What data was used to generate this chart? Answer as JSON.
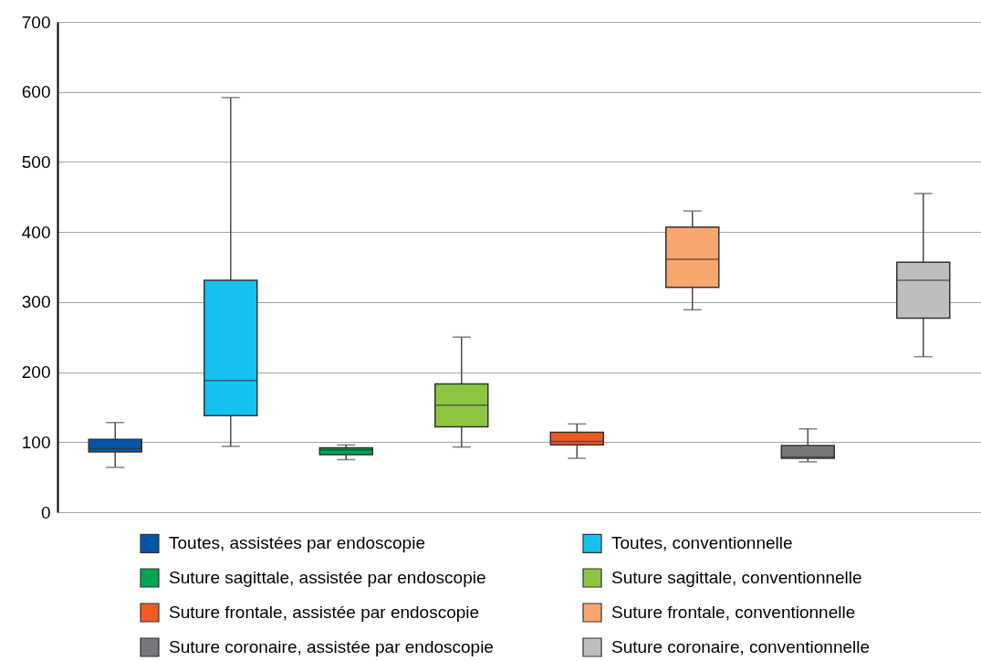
{
  "chart_data": {
    "type": "box",
    "categories": [
      null,
      null,
      null,
      null,
      null,
      null,
      null,
      null
    ],
    "ylim": [
      0,
      700
    ],
    "yticks": [
      0,
      100,
      200,
      300,
      400,
      500,
      600,
      700
    ],
    "grid": "y",
    "legend": "bottom",
    "tick_labels": "y",
    "series": [
      {
        "name": "Toutes, assistées par endoscopie",
        "color": "#0057a8",
        "boxes": [
          {
            "low": 64,
            "q1": 86,
            "median": 91,
            "q3": 104,
            "high": 128
          },
          null,
          null,
          null,
          null,
          null,
          null,
          null
        ]
      },
      {
        "name": "Toutes, conventionnelle",
        "color": "#15c1f0",
        "boxes": [
          null,
          {
            "low": 94,
            "q1": 138,
            "median": 188,
            "q3": 331,
            "high": 592
          },
          null,
          null,
          null,
          null,
          null,
          null
        ]
      },
      {
        "name": "Suture sagittale, assistée par endoscopie",
        "color": "#00a651",
        "boxes": [
          null,
          null,
          {
            "low": 75,
            "q1": 82,
            "median": 89,
            "q3": 92,
            "high": 96
          },
          null,
          null,
          null,
          null,
          null
        ]
      },
      {
        "name": "Suture sagittale, conventionnelle",
        "color": "#8cc63f",
        "boxes": [
          null,
          null,
          null,
          {
            "low": 93,
            "q1": 122,
            "median": 153,
            "q3": 183,
            "high": 250
          },
          null,
          null,
          null,
          null
        ]
      },
      {
        "name": "Suture frontale, assistée par endoscopie",
        "color": "#f15a22",
        "boxes": [
          null,
          null,
          null,
          null,
          {
            "low": 77,
            "q1": 96,
            "median": 101,
            "q3": 114,
            "high": 126
          },
          null,
          null,
          null
        ]
      },
      {
        "name": "Suture frontale, conventionnelle",
        "color": "#f7a66e",
        "boxes": [
          null,
          null,
          null,
          null,
          null,
          {
            "low": 289,
            "q1": 321,
            "median": 361,
            "q3": 407,
            "high": 430
          },
          null,
          null
        ]
      },
      {
        "name": "Suture coronaire, assistée par endoscopie",
        "color": "#77787b",
        "boxes": [
          null,
          null,
          null,
          null,
          null,
          null,
          {
            "low": 72,
            "q1": 77,
            "median": 79,
            "q3": 95,
            "high": 119
          },
          null
        ]
      },
      {
        "name": "Suture coronaire, conventionnelle",
        "color": "#bcbec0",
        "boxes": [
          null,
          null,
          null,
          null,
          null,
          null,
          null,
          {
            "low": 222,
            "q1": 277,
            "median": 331,
            "q3": 357,
            "high": 455
          }
        ]
      }
    ]
  }
}
